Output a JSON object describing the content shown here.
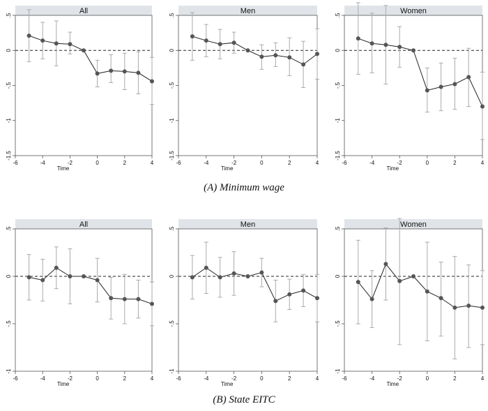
{
  "figure": {
    "caption_a": "(A) Minimum wage",
    "caption_b": "(B) State EITC"
  },
  "chart_data": [
    {
      "type": "line",
      "group": "A",
      "title": "All",
      "xlabel": "Time",
      "ylabel": "",
      "xlim": [
        -6,
        4
      ],
      "ylim": [
        -1.5,
        0.5
      ],
      "xticks": [
        -6,
        -4,
        -2,
        0,
        2,
        4
      ],
      "xtick_labels": [
        "-6",
        "-4",
        "-2",
        "0",
        "2",
        "4"
      ],
      "yticks": [
        0.5,
        0,
        -0.5,
        -1,
        -1.5
      ],
      "ytick_labels": [
        ".5",
        "0",
        "-.5",
        "-1",
        "-1.5"
      ],
      "reference_line": 0,
      "grid": false,
      "x": [
        -5,
        -4,
        -3,
        -2,
        -1,
        0,
        1,
        2,
        3,
        4
      ],
      "y": [
        0.21,
        0.14,
        0.1,
        0.09,
        0.0,
        -0.33,
        -0.29,
        -0.3,
        -0.32,
        -0.44
      ],
      "ci_low": [
        -0.16,
        -0.12,
        -0.22,
        -0.05,
        0.0,
        -0.52,
        -0.46,
        -0.56,
        -0.62,
        -0.77
      ],
      "ci_high": [
        0.58,
        0.4,
        0.42,
        0.26,
        0.0,
        -0.14,
        -0.06,
        -0.04,
        -0.02,
        -0.1
      ]
    },
    {
      "type": "line",
      "group": "A",
      "title": "Men",
      "xlabel": "Time",
      "ylabel": "",
      "xlim": [
        -6,
        4
      ],
      "ylim": [
        -1.5,
        0.5
      ],
      "xticks": [
        -6,
        -4,
        -2,
        0,
        2,
        4
      ],
      "xtick_labels": [
        "-6",
        "-4",
        "-2",
        "0",
        "2",
        "4"
      ],
      "yticks": [
        0.5,
        0,
        -0.5,
        -1,
        -1.5
      ],
      "ytick_labels": [
        ".5",
        "0",
        "-.5",
        "-1",
        "-1.5"
      ],
      "reference_line": 0,
      "grid": false,
      "x": [
        -5,
        -4,
        -3,
        -2,
        -1,
        0,
        1,
        2,
        3,
        4
      ],
      "y": [
        0.2,
        0.14,
        0.09,
        0.11,
        0.0,
        -0.09,
        -0.07,
        -0.1,
        -0.2,
        -0.05
      ],
      "ci_low": [
        -0.14,
        -0.09,
        -0.12,
        -0.04,
        0.0,
        -0.27,
        -0.23,
        -0.36,
        -0.53,
        -0.41
      ],
      "ci_high": [
        0.54,
        0.37,
        0.3,
        0.26,
        0.0,
        0.08,
        0.11,
        0.18,
        0.13,
        0.31
      ]
    },
    {
      "type": "line",
      "group": "A",
      "title": "Women",
      "xlabel": "Time",
      "ylabel": "",
      "xlim": [
        -6,
        4
      ],
      "ylim": [
        -1.5,
        0.5
      ],
      "xticks": [
        -6,
        -4,
        -2,
        0,
        2,
        4
      ],
      "xtick_labels": [
        "-6",
        "-4",
        "-2",
        "0",
        "2",
        "4"
      ],
      "yticks": [
        0.5,
        0,
        -0.5,
        -1,
        -1.5
      ],
      "ytick_labels": [
        ".5",
        "0",
        "-.5",
        "-1",
        "-1.5"
      ],
      "reference_line": 0,
      "grid": false,
      "x": [
        -5,
        -4,
        -3,
        -2,
        -1,
        0,
        1,
        2,
        3,
        4
      ],
      "y": [
        0.17,
        0.1,
        0.08,
        0.05,
        0.0,
        -0.57,
        -0.52,
        -0.48,
        -0.38,
        -0.8
      ],
      "ci_low": [
        -0.34,
        -0.32,
        -0.48,
        -0.24,
        0.0,
        -0.88,
        -0.86,
        -0.84,
        -0.8,
        -1.27
      ],
      "ci_high": [
        0.68,
        0.53,
        0.64,
        0.34,
        0.0,
        -0.25,
        -0.18,
        -0.11,
        0.03,
        -0.31
      ]
    },
    {
      "type": "line",
      "group": "B",
      "title": "All",
      "xlabel": "Time",
      "ylabel": "",
      "xlim": [
        -6,
        4
      ],
      "ylim": [
        -1,
        0.5
      ],
      "xticks": [
        -6,
        -4,
        -2,
        0,
        2,
        4
      ],
      "xtick_labels": [
        "-6",
        "-4",
        "-2",
        "0",
        "2",
        "4"
      ],
      "yticks": [
        0.5,
        0,
        -0.5,
        -1
      ],
      "ytick_labels": [
        ".5",
        "0",
        "-.5",
        "-1"
      ],
      "reference_line": 0,
      "grid": false,
      "x": [
        -5,
        -4,
        -3,
        -2,
        -1,
        0,
        1,
        2,
        3,
        4
      ],
      "y": [
        -0.01,
        -0.04,
        0.09,
        0.0,
        0.0,
        -0.04,
        -0.23,
        -0.24,
        -0.24,
        -0.29
      ],
      "ci_low": [
        -0.25,
        -0.26,
        -0.13,
        -0.29,
        0.0,
        -0.27,
        -0.45,
        -0.5,
        -0.44,
        -0.52
      ],
      "ci_high": [
        0.23,
        0.18,
        0.31,
        0.29,
        0.0,
        0.19,
        -0.01,
        0.02,
        -0.04,
        -0.06
      ]
    },
    {
      "type": "line",
      "group": "B",
      "title": "Men",
      "xlabel": "Time",
      "ylabel": "",
      "xlim": [
        -6,
        4
      ],
      "ylim": [
        -1,
        0.5
      ],
      "xticks": [
        -6,
        -4,
        -2,
        0,
        2,
        4
      ],
      "xtick_labels": [
        "-6",
        "-4",
        "-2",
        "0",
        "2",
        "4"
      ],
      "yticks": [
        0.5,
        0,
        -0.5,
        -1
      ],
      "ytick_labels": [
        ".5",
        "0",
        "-.5",
        "-1"
      ],
      "reference_line": 0,
      "grid": false,
      "x": [
        -5,
        -4,
        -3,
        -2,
        -1,
        0,
        1,
        2,
        3,
        4
      ],
      "y": [
        -0.01,
        0.09,
        -0.01,
        0.03,
        0.0,
        0.04,
        -0.26,
        -0.19,
        -0.15,
        -0.23
      ],
      "ci_low": [
        -0.24,
        -0.18,
        -0.22,
        -0.2,
        0.0,
        -0.11,
        -0.48,
        -0.35,
        -0.32,
        -0.48
      ],
      "ci_high": [
        0.22,
        0.36,
        0.2,
        0.26,
        0.0,
        0.19,
        -0.04,
        -0.03,
        0.02,
        0.02
      ]
    },
    {
      "type": "line",
      "group": "B",
      "title": "Women",
      "xlabel": "Time",
      "ylabel": "",
      "xlim": [
        -6,
        4
      ],
      "ylim": [
        -1,
        0.5
      ],
      "xticks": [
        -6,
        -4,
        -2,
        0,
        2,
        4
      ],
      "xtick_labels": [
        "-6",
        "-4",
        "-2",
        "0",
        "2",
        "4"
      ],
      "yticks": [
        0.5,
        0,
        -0.5,
        -1
      ],
      "ytick_labels": [
        ".5",
        "0",
        "-.5",
        "-1"
      ],
      "reference_line": 0,
      "grid": false,
      "x": [
        -5,
        -4,
        -3,
        -2,
        -1,
        0,
        1,
        2,
        3,
        4
      ],
      "y": [
        -0.06,
        -0.24,
        0.13,
        -0.05,
        0.0,
        -0.16,
        -0.23,
        -0.33,
        -0.31,
        -0.33
      ],
      "ci_low": [
        -0.5,
        -0.54,
        -0.25,
        -0.72,
        0.0,
        -0.68,
        -0.63,
        -0.87,
        -0.75,
        -0.72
      ],
      "ci_high": [
        0.38,
        0.06,
        0.51,
        0.61,
        0.0,
        0.36,
        0.15,
        0.21,
        0.12,
        0.06
      ]
    }
  ],
  "style": {
    "axis_color": "#555555",
    "point_color": "#555555",
    "line_color": "#222222",
    "ci_color": "#aaaaaa",
    "refline_color": "#222222",
    "title_bar_color": "#e0e4e8",
    "text_color": "#111111"
  }
}
